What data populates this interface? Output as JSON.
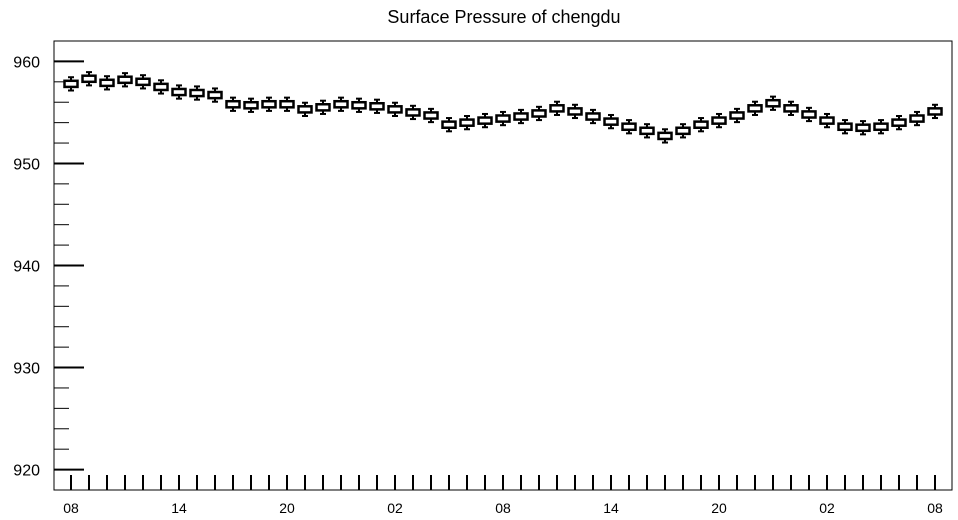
{
  "chart_data": {
    "type": "boxplot",
    "title": "Surface Pressure of chengdu",
    "xlabel": "",
    "ylabel": "",
    "ylim": [
      918,
      962
    ],
    "y_ticks": [
      920,
      930,
      940,
      950,
      960
    ],
    "y_tick_labels": [
      "920",
      "930",
      "940",
      "950",
      "960"
    ],
    "y_minor_step": 2,
    "x_tick_labels": [
      "08",
      "14",
      "20",
      "02",
      "08",
      "14",
      "20",
      "02",
      "08"
    ],
    "x_tick_label_every": 6,
    "grid": false,
    "series": [
      {
        "values": [
          957.8,
          958.3,
          957.9,
          958.2,
          958.0,
          957.5,
          957.0,
          956.9,
          956.7,
          955.8,
          955.7,
          955.8,
          955.8,
          955.3,
          955.5,
          955.8,
          955.7,
          955.6,
          955.3,
          955.0,
          954.7,
          953.8,
          954.0,
          954.2,
          954.4,
          954.6,
          954.9,
          955.4,
          955.1,
          954.6,
          954.1,
          953.6,
          953.2,
          952.7,
          953.2,
          953.8,
          954.2,
          954.7,
          955.4,
          955.9,
          955.4,
          954.8,
          954.2,
          953.6,
          953.5,
          953.6,
          954.0,
          954.4,
          955.1
        ]
      }
    ]
  }
}
